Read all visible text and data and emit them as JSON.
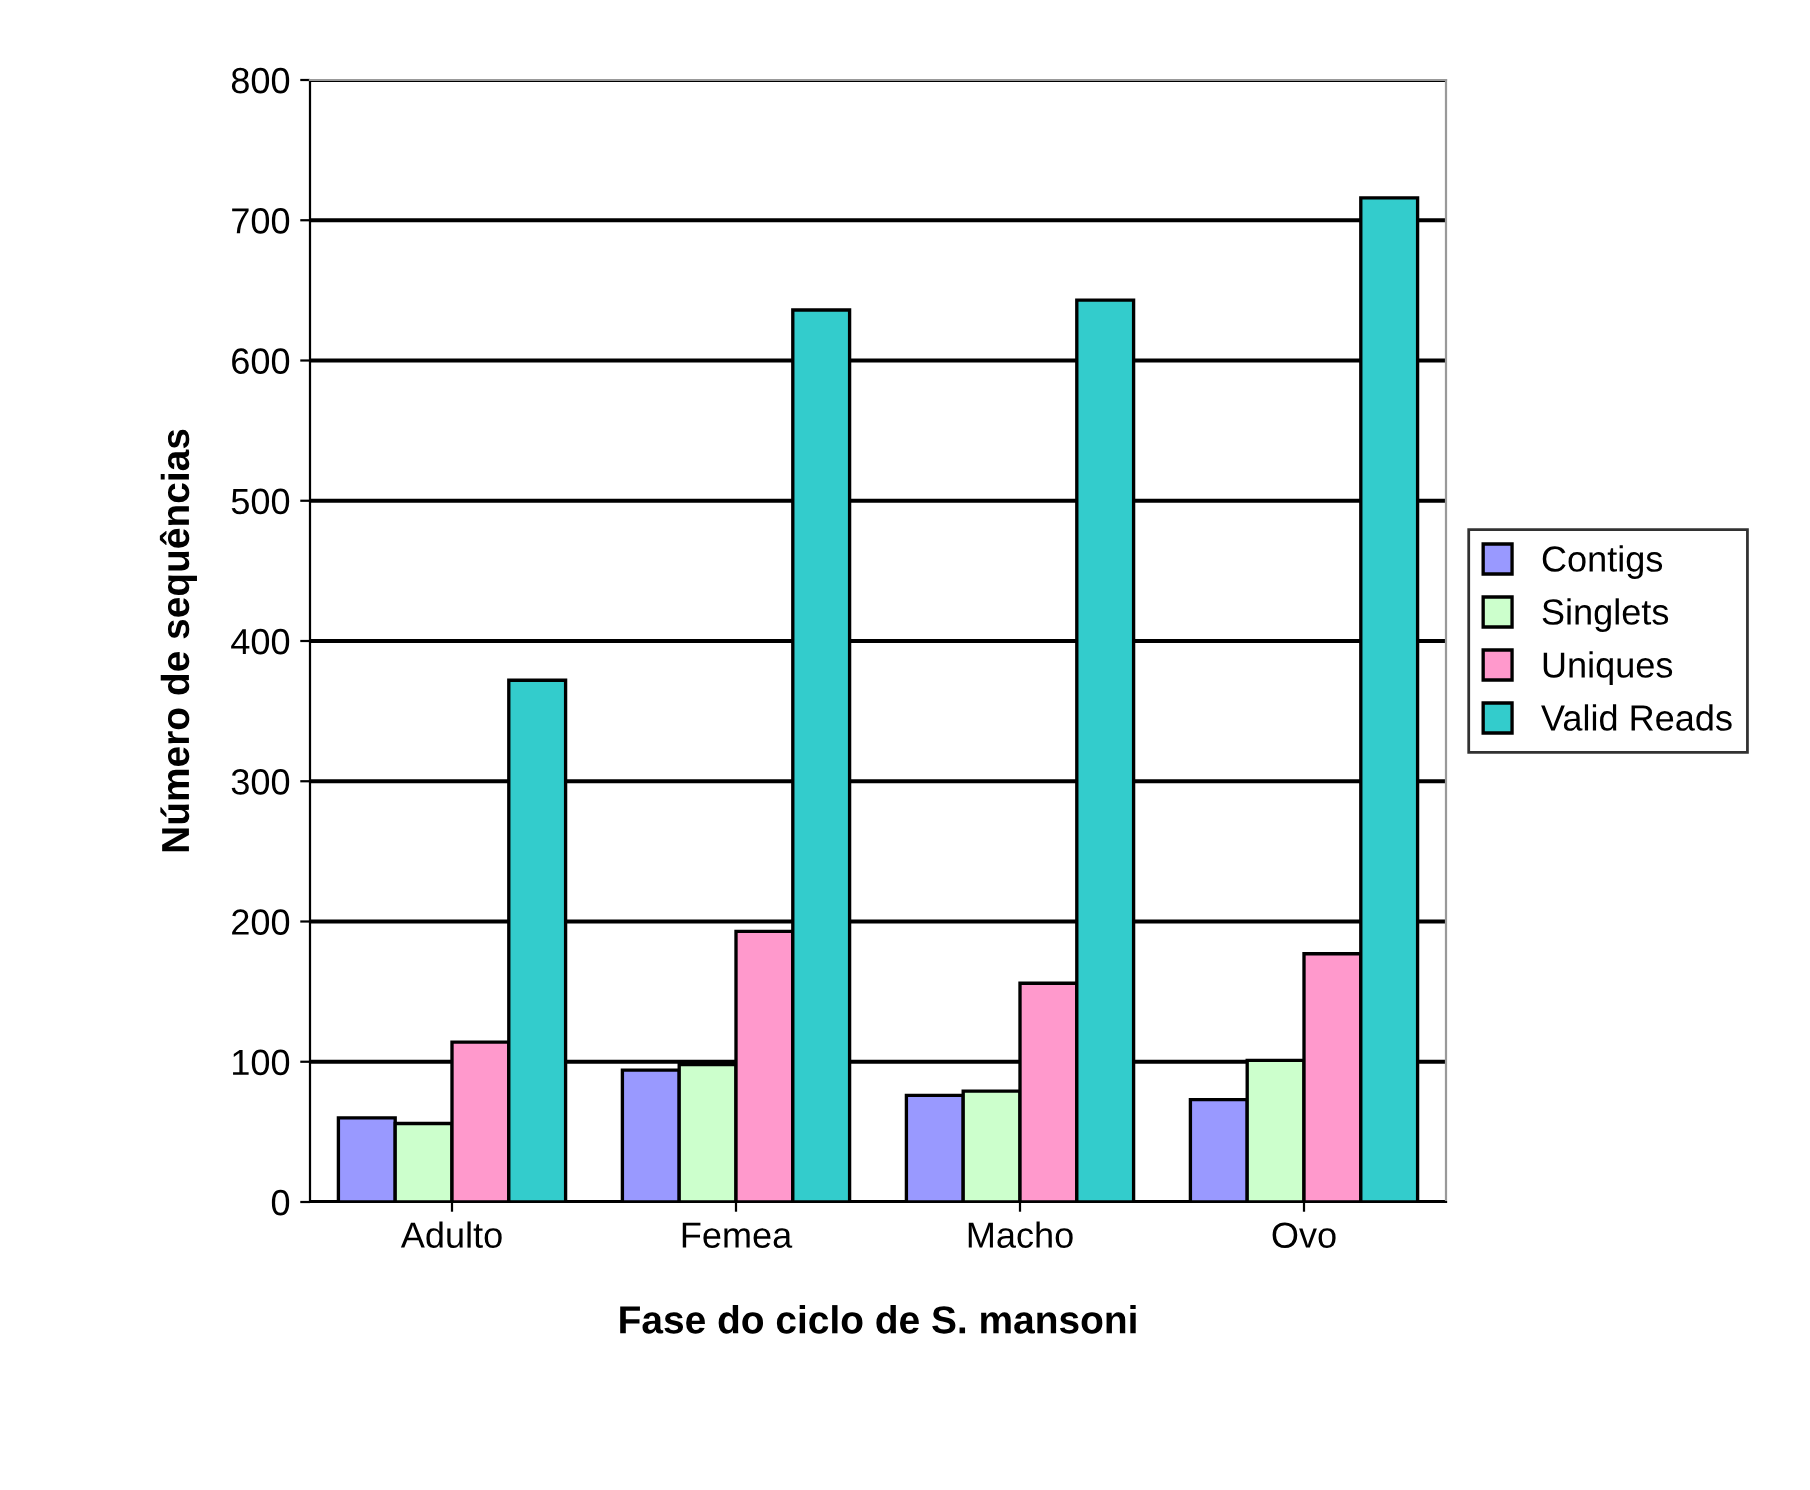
{
  "chart_data": {
    "type": "bar",
    "xlabel": "Fase do ciclo de S. mansoni",
    "ylabel": "Número de sequências",
    "categories": [
      "Adulto",
      "Femea",
      "Macho",
      "Ovo"
    ],
    "series": [
      {
        "name": "Contigs",
        "color": "#9999ff",
        "values": [
          60,
          94,
          76,
          73
        ]
      },
      {
        "name": "Singlets",
        "color": "#ccffcc",
        "values": [
          56,
          98,
          79,
          101
        ]
      },
      {
        "name": "Uniques",
        "color": "#ff99cc",
        "values": [
          114,
          193,
          156,
          177
        ]
      },
      {
        "name": "Valid Reads",
        "color": "#33cccc",
        "values": [
          372,
          636,
          643,
          716
        ]
      }
    ],
    "ylim": [
      0,
      800
    ],
    "yticks": [
      0,
      100,
      200,
      300,
      400,
      500,
      600,
      700,
      800
    ],
    "grid": "y",
    "legend": "right"
  }
}
